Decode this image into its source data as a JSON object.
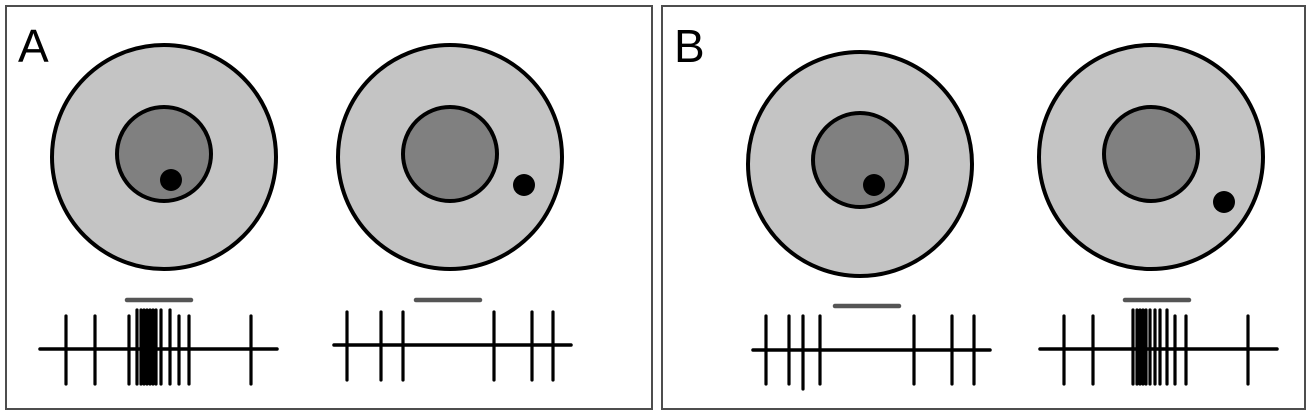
{
  "panels": [
    {
      "id": "A",
      "label": "A",
      "cells": [
        {
          "stimulus_location": "inside-center",
          "response": "strong",
          "spike_pattern": "sparse-dense-burst-sparse"
        },
        {
          "stimulus_location": "surround",
          "response": "suppressed",
          "spike_pattern": "sparse-with-gap"
        }
      ]
    },
    {
      "id": "B",
      "label": "B",
      "cells": [
        {
          "stimulus_location": "inside-center",
          "response": "suppressed",
          "spike_pattern": "sparse-with-gap"
        },
        {
          "stimulus_location": "surround",
          "response": "strong",
          "spike_pattern": "sparse-dense-burst-sparse"
        }
      ]
    }
  ],
  "colors": {
    "outer_field": "#c4c4c4",
    "inner_field": "#808080",
    "stimulus": "#000000",
    "stimulus_bar": "#555555",
    "border": "#4d4d4d"
  }
}
